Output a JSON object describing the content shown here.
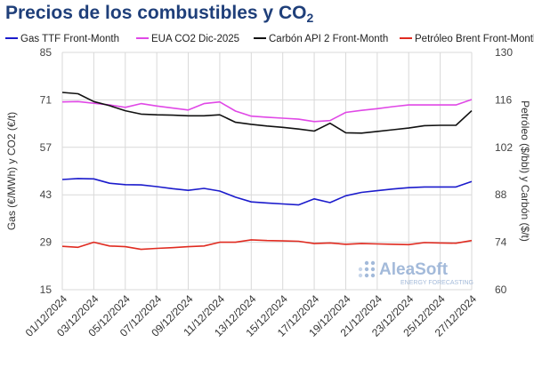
{
  "chart_data": {
    "type": "line",
    "title_main": "Precios de los combustibles y CO",
    "title_sub": "2",
    "ylabel_left": "Gas (€/MWh) y CO2 (€/t)",
    "ylabel_right": "Petróleo ($/bbl) y Carbón ($/t)",
    "ylim_left": [
      15,
      85
    ],
    "yticks_left": [
      "15",
      "29",
      "43",
      "57",
      "71",
      "85"
    ],
    "ylim_right": [
      60,
      130
    ],
    "yticks_right": [
      "60",
      "74",
      "88",
      "102",
      "116",
      "130"
    ],
    "x": [
      "01/12/2024",
      "02/12/2024",
      "03/12/2024",
      "04/12/2024",
      "05/12/2024",
      "06/12/2024",
      "07/12/2024",
      "08/12/2024",
      "09/12/2024",
      "10/12/2024",
      "11/12/2024",
      "12/12/2024",
      "13/12/2024",
      "14/12/2024",
      "15/12/2024",
      "16/12/2024",
      "17/12/2024",
      "18/12/2024",
      "19/12/2024",
      "20/12/2024",
      "21/12/2024",
      "22/12/2024",
      "23/12/2024",
      "24/12/2024",
      "25/12/2024",
      "26/12/2024",
      "27/12/2024"
    ],
    "xticks": [
      "01/12/2024",
      "03/12/2024",
      "05/12/2024",
      "07/12/2024",
      "09/12/2024",
      "11/12/2024",
      "13/12/2024",
      "15/12/2024",
      "17/12/2024",
      "19/12/2024",
      "21/12/2024",
      "23/12/2024",
      "25/12/2024",
      "27/12/2024"
    ],
    "grid": true,
    "legend_position": "top",
    "series": [
      {
        "name": "Gas TTF Front-Month",
        "axis": "left",
        "color": "#1b1bcc",
        "values": [
          47.5,
          47.8,
          47.7,
          46.4,
          46.0,
          45.9,
          45.4,
          44.8,
          44.3,
          44.9,
          44.1,
          42.3,
          40.9,
          40.6,
          40.3,
          40.0,
          41.8,
          40.7,
          42.7,
          43.7,
          44.2,
          44.7,
          45.1,
          45.3,
          45.3,
          45.3,
          46.9
        ]
      },
      {
        "name": "EUA CO2 Dic-2025",
        "axis": "left",
        "color": "#e048e6",
        "values": [
          70.4,
          70.5,
          70.0,
          69.5,
          68.8,
          69.9,
          69.2,
          68.6,
          68.0,
          69.9,
          70.4,
          67.7,
          66.2,
          65.9,
          65.6,
          65.3,
          64.6,
          64.9,
          67.3,
          67.9,
          68.4,
          69.0,
          69.5,
          69.5,
          69.5,
          69.5,
          71.1
        ]
      },
      {
        "name": "Carbón API 2 Front-Month",
        "axis": "right",
        "color": "#111111",
        "values": [
          118.2,
          117.8,
          115.5,
          114.3,
          112.8,
          111.8,
          111.6,
          111.5,
          111.3,
          111.3,
          111.6,
          109.4,
          108.8,
          108.3,
          107.9,
          107.4,
          106.8,
          109.1,
          106.3,
          106.2,
          106.7,
          107.2,
          107.7,
          108.4,
          108.5,
          108.5,
          112.8
        ]
      },
      {
        "name": "Petróleo Brent Front-Month",
        "axis": "right",
        "color": "#e02b20",
        "values": [
          72.8,
          72.5,
          74.0,
          72.9,
          72.7,
          71.9,
          72.2,
          72.4,
          72.7,
          72.9,
          74.0,
          74.0,
          74.7,
          74.5,
          74.4,
          74.3,
          73.6,
          73.8,
          73.4,
          73.6,
          73.5,
          73.4,
          73.3,
          73.9,
          73.8,
          73.7,
          74.5
        ]
      }
    ]
  },
  "watermark": {
    "brand": "AleaSoft",
    "tagline": "ENERGY FORECASTING",
    "color": "#9ab3d6"
  }
}
